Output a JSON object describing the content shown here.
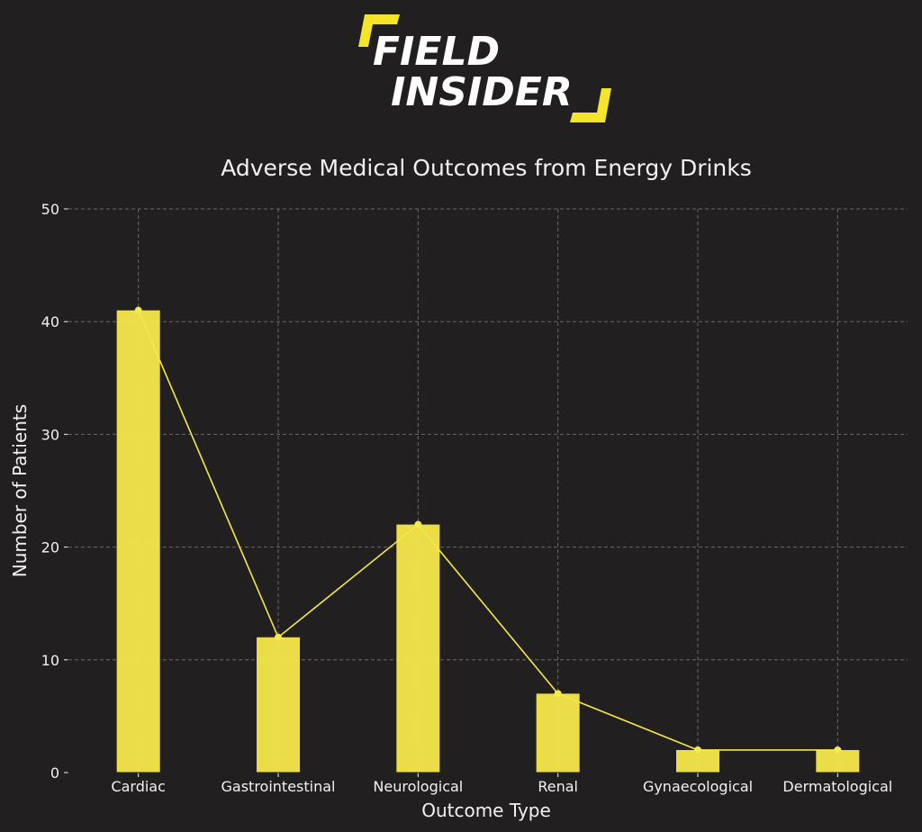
{
  "logo": {
    "line1": "FIELD",
    "line2": "INSIDER",
    "accent_color": "#f5e52a"
  },
  "chart_data": {
    "type": "bar",
    "title": "Adverse Medical Outcomes from Energy Drinks",
    "xlabel": "Outcome Type",
    "ylabel": "Number of Patients",
    "categories": [
      "Cardiac",
      "Gastrointestinal",
      "Neurological",
      "Renal",
      "Gynaecological",
      "Dermatological"
    ],
    "values": [
      41,
      12,
      22,
      7,
      2,
      2
    ],
    "ylim": [
      0,
      50
    ],
    "yticks": [
      0,
      10,
      20,
      30,
      40,
      50
    ],
    "grid": true,
    "overlay_line": true,
    "bar_color": "#f5e84a",
    "line_color": "#f5e84a",
    "background_color": "#221f20"
  }
}
